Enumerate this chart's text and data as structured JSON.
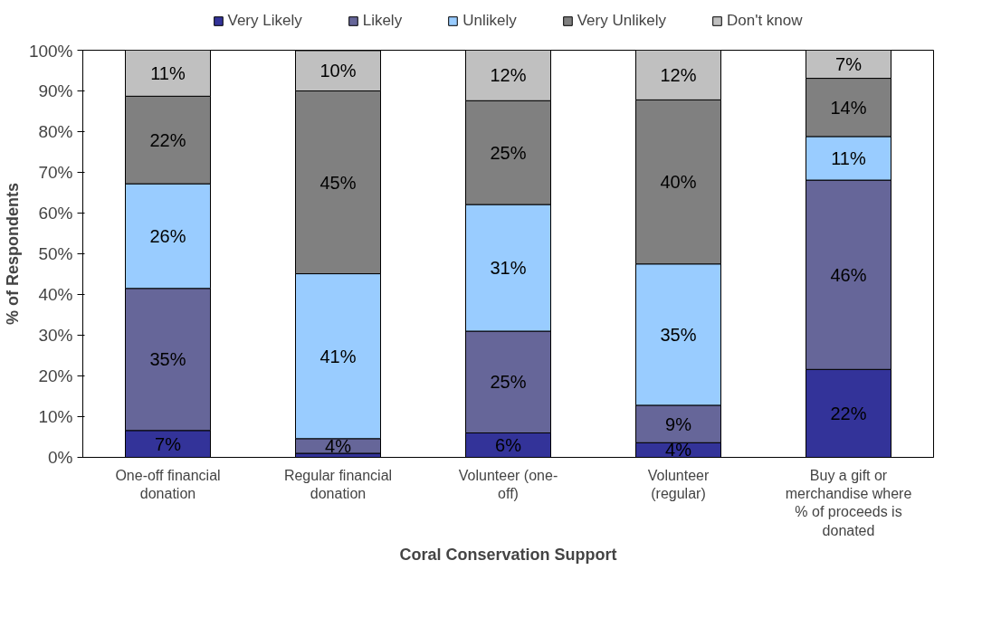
{
  "chart_data": {
    "type": "bar",
    "stacked": true,
    "xlabel": "Coral Conservation Support",
    "ylabel": "% of Respondents",
    "categories": [
      "One-off financial donation",
      "Regular financial donation",
      "Volunteer (one-off)",
      "Volunteer (regular)",
      "Buy a gift or merchandise where % of proceeds is donated"
    ],
    "series": [
      {
        "name": "Very Likely",
        "color": "#333399",
        "values": [
          6.6,
          1,
          6.0,
          3.6,
          21.6
        ],
        "value_labels": [
          "7%",
          null,
          "6%",
          "4%",
          "22%"
        ]
      },
      {
        "name": "Likely",
        "color": "#666699",
        "values": [
          34.9,
          3.6,
          25.0,
          9.2,
          46.5
        ],
        "value_labels": [
          "35%",
          "4%",
          "25%",
          "9%",
          "46%"
        ]
      },
      {
        "name": "Unlikely",
        "color": "#99ccff",
        "values": [
          25.7,
          40.5,
          31.1,
          34.7,
          10.7
        ],
        "value_labels": [
          "26%",
          "41%",
          "31%",
          "35%",
          "11%"
        ]
      },
      {
        "name": "Very Unlikely",
        "color": "#808080",
        "values": [
          21.5,
          44.9,
          25.5,
          40.3,
          14.3
        ],
        "value_labels": [
          "22%",
          "45%",
          "25%",
          "40%",
          "14%"
        ]
      },
      {
        "name": "Don't know",
        "color": "#c0c0c0",
        "values": [
          11.3,
          9.9,
          12.4,
          12.2,
          6.9
        ],
        "value_labels": [
          "11%",
          "10%",
          "12%",
          "12%",
          "7%"
        ]
      }
    ],
    "ylim": [
      0,
      100
    ],
    "yticks": [
      {
        "value": 0,
        "label": "0%"
      },
      {
        "value": 10,
        "label": "10%"
      },
      {
        "value": 20,
        "label": "20%"
      },
      {
        "value": 30,
        "label": "30%"
      },
      {
        "value": 40,
        "label": "40%"
      },
      {
        "value": 50,
        "label": "50%"
      },
      {
        "value": 60,
        "label": "60%"
      },
      {
        "value": 70,
        "label": "70%"
      },
      {
        "value": 80,
        "label": "80%"
      },
      {
        "value": 90,
        "label": "90%"
      },
      {
        "value": 100,
        "label": "100%"
      }
    ],
    "grid": false,
    "legend": "top"
  }
}
